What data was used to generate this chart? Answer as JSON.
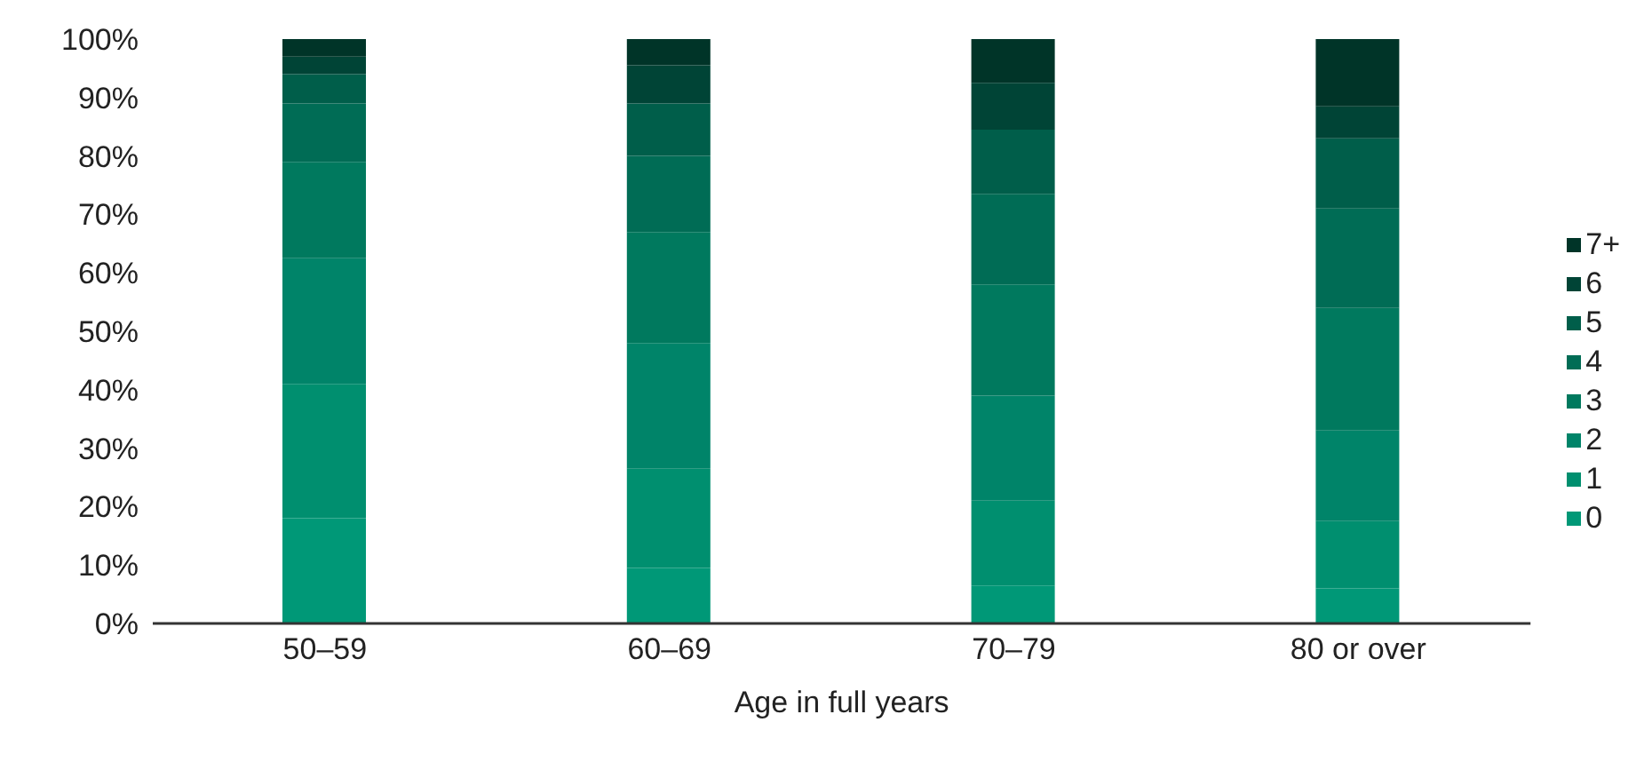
{
  "chart_data": {
    "type": "bar",
    "stacked": true,
    "xlabel": "Age in full years",
    "categories": [
      "50–59",
      "60–69",
      "70–79",
      "80 or over"
    ],
    "series": [
      {
        "name": "0",
        "color": "#009877",
        "values": [
          18,
          9.5,
          6.5,
          6
        ]
      },
      {
        "name": "1",
        "color": "#008f6f",
        "values": [
          23,
          17,
          14.5,
          11.5
        ]
      },
      {
        "name": "2",
        "color": "#008469",
        "values": [
          21.5,
          21.5,
          18,
          15.5
        ]
      },
      {
        "name": "3",
        "color": "#00795e",
        "values": [
          16.5,
          19,
          19,
          21
        ]
      },
      {
        "name": "4",
        "color": "#006c55",
        "values": [
          10,
          13,
          15.5,
          17
        ]
      },
      {
        "name": "5",
        "color": "#005e4a",
        "values": [
          5,
          9,
          11,
          12
        ]
      },
      {
        "name": "6",
        "color": "#004436",
        "values": [
          3,
          6.5,
          8,
          5.5
        ]
      },
      {
        "name": "7+",
        "color": "#003428",
        "values": [
          3,
          4.5,
          7.5,
          11.5
        ]
      }
    ],
    "ylim": [
      0,
      100
    ],
    "yticks": [
      {
        "value": 0,
        "label": "0%"
      },
      {
        "value": 10,
        "label": "10%"
      },
      {
        "value": 20,
        "label": "20%"
      },
      {
        "value": 30,
        "label": "30%"
      },
      {
        "value": 40,
        "label": "40%"
      },
      {
        "value": 50,
        "label": "50%"
      },
      {
        "value": 60,
        "label": "60%"
      },
      {
        "value": 70,
        "label": "70%"
      },
      {
        "value": 80,
        "label": "80%"
      },
      {
        "value": 90,
        "label": "90%"
      },
      {
        "value": 100,
        "label": "100%"
      }
    ],
    "grid": false,
    "legend": "right"
  }
}
